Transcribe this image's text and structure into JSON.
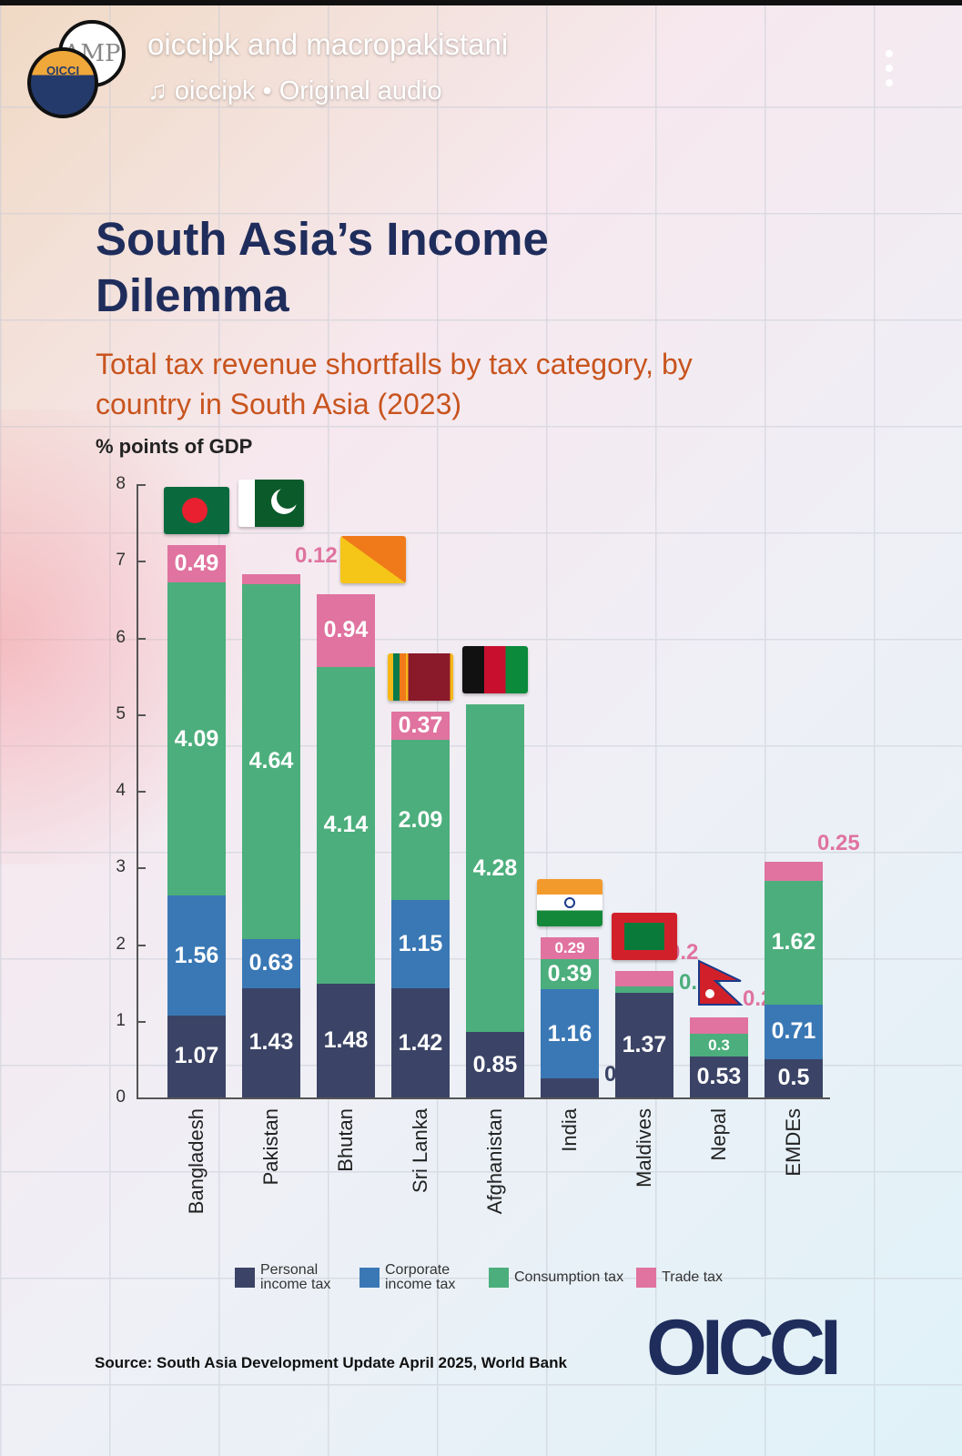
{
  "header": {
    "name": "oiccipk and macropakistani",
    "audio": "oiccipk • Original audio",
    "avatar_back": "AMP",
    "avatar_front": "OICCI"
  },
  "colors": {
    "personal": "#3b4466",
    "corporate": "#3a78b5",
    "consumption": "#4cae7c",
    "trade": "#e0739f",
    "title": "#1f2d5c",
    "subtitle": "#c8541e"
  },
  "chart_data": {
    "type": "bar",
    "stacked": true,
    "title": "South Asia’s Income Dilemma",
    "subtitle": "Total tax revenue shortfalls by tax category, by country in South Asia (2023)",
    "ylabel": "% points of GDP",
    "xlabel": "",
    "ylim": [
      0,
      8
    ],
    "yticks": [
      "0",
      "1",
      "2",
      "3",
      "4",
      "5",
      "6",
      "7",
      "8"
    ],
    "categories": [
      "Bangladesh",
      "Pakistan",
      "Bhutan",
      "Sri Lanka",
      "Afghanistan",
      "India",
      "Maldives",
      "Nepal",
      "EMDEs"
    ],
    "flags": [
      "bangladesh-flag",
      "pakistan-flag",
      "bhutan-flag",
      "sri-lanka-flag",
      "afghanistan-flag",
      "india-flag",
      "maldives-flag",
      "nepal-flag",
      null
    ],
    "series": [
      {
        "name": "Personal income tax",
        "key": "personal",
        "values": [
          1.07,
          1.43,
          1.48,
          1.42,
          0.85,
          0.25,
          1.37,
          0.53,
          0.5
        ]
      },
      {
        "name": "Corporate income tax",
        "key": "corporate",
        "values": [
          1.56,
          0.63,
          null,
          1.15,
          null,
          1.16,
          null,
          null,
          0.71
        ]
      },
      {
        "name": "Consumption tax",
        "key": "consumption",
        "values": [
          4.09,
          4.64,
          4.14,
          2.09,
          4.28,
          0.39,
          0.08,
          0.3,
          1.62
        ]
      },
      {
        "name": "Trade tax",
        "key": "trade",
        "values": [
          0.49,
          0.12,
          0.94,
          0.37,
          null,
          0.29,
          0.2,
          0.22,
          0.25
        ]
      }
    ],
    "legend": [
      "Personal income tax",
      "Corporate income tax",
      "Consumption tax",
      "Trade tax"
    ],
    "legend_position": "bottom",
    "source": "Source: South Asia Development Update April 2025, World Bank"
  },
  "brand": "OICCI"
}
